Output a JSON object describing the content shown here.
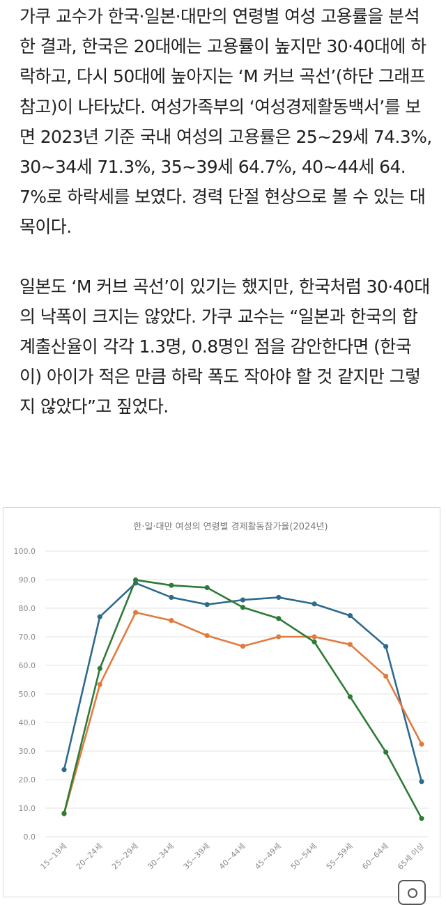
{
  "article": {
    "paragraphs": [
      "가쿠 교수가 한국·일본·대만의 연령별 여성 고용률을 분석한 결과, 한국은 20대에는 고용률이 높지만 30·40대에 하락하고, 다시 50대에 높아지는 ‘M 커브 곡선’(하단 그래프 참고)이 나타났다. 여성가족부의 ‘여성경제활동백서’를 보면 2023년 기준 국내 여성의 고용률은 25~29세 74.3%, 30~34세 71.3%, 35~39세 64.7%, 40~44세 64.7%로 하락세를 보였다. 경력 단절 현상으로 볼 수 있는 대목이다.",
      "일본도 ‘M 커브 곡선’이 있기는 했지만, 한국처럼 30·40대의 낙폭이 크지는 않았다. 가쿠 교수는 “일본과 한국의 합계출산율이 각각 1.3명, 0.8명인 점을 감안한다면 (한국이) 아이가 적은 만큼 하락 폭도 작아야 할 것 같지만 그렇지 않았다”고 짚었다."
    ]
  },
  "chart_data": {
    "type": "line",
    "title": "한·일·대만 여성의 연령별 경제활동참가율(2024년)",
    "xlabel": "",
    "ylabel": "",
    "categories": [
      "15~19세",
      "20~24세",
      "25~29세",
      "30~34세",
      "35~39세",
      "40~44세",
      "45~49세",
      "50~54세",
      "55~59세",
      "60~64세",
      "65세 이상"
    ],
    "yticks": [
      "0.0",
      "10.0",
      "20.0",
      "30.0",
      "40.0",
      "50.0",
      "60.0",
      "70.0",
      "80.0",
      "90.0",
      "100.0"
    ],
    "ylim": [
      0,
      100
    ],
    "grid": true,
    "legend": "none",
    "series": [
      {
        "color": "#2e6a8e",
        "values": [
          23.5,
          77.0,
          88.8,
          83.8,
          81.3,
          82.9,
          83.8,
          81.5,
          77.4,
          66.6,
          19.3
        ]
      },
      {
        "color": "#e07b40",
        "values": [
          8.0,
          53.3,
          78.5,
          75.7,
          70.4,
          66.7,
          70.0,
          70.0,
          67.3,
          56.2,
          32.4
        ]
      },
      {
        "color": "#2f7a37",
        "values": [
          8.2,
          58.9,
          89.9,
          88.0,
          87.2,
          80.3,
          76.4,
          68.2,
          49.0,
          29.6,
          6.4
        ]
      }
    ]
  }
}
